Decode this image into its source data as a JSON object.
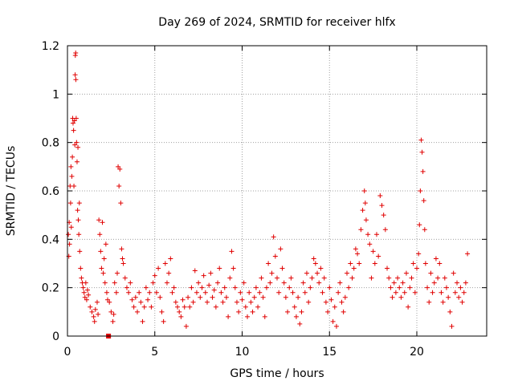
{
  "chart_data": {
    "type": "scatter",
    "title": "Day 269 of 2024, SRMTID for receiver hlfx",
    "xlabel": "GPS time / hours",
    "ylabel": "SRMTID / TECUs",
    "xlim": [
      0,
      24
    ],
    "ylim": [
      0,
      1.2
    ],
    "xticks": [
      0,
      5,
      10,
      15,
      20
    ],
    "xtick_labels": [
      "0",
      "5",
      "10",
      "15",
      "20"
    ],
    "yticks": [
      0,
      0.2,
      0.4,
      0.6,
      0.8,
      1.0,
      1.2
    ],
    "ytick_labels": [
      "0",
      "0.2",
      "0.4",
      "0.6",
      "0.8",
      "1",
      "1.2"
    ],
    "grid": true,
    "marker": "plus",
    "color": "#e00000",
    "series": [
      {
        "name": "SRMTID",
        "points": [
          [
            0.05,
            0.42
          ],
          [
            0.08,
            0.33
          ],
          [
            0.1,
            0.47
          ],
          [
            0.12,
            0.38
          ],
          [
            0.15,
            0.62
          ],
          [
            0.18,
            0.55
          ],
          [
            0.2,
            0.7
          ],
          [
            0.22,
            0.45
          ],
          [
            0.25,
            0.66
          ],
          [
            0.28,
            0.74
          ],
          [
            0.3,
            0.9
          ],
          [
            0.32,
            0.88
          ],
          [
            0.35,
            0.85
          ],
          [
            0.37,
            0.62
          ],
          [
            0.4,
            0.89
          ],
          [
            0.42,
            0.79
          ],
          [
            0.44,
            1.08
          ],
          [
            0.45,
            1.16
          ],
          [
            0.47,
            1.17
          ],
          [
            0.48,
            1.06
          ],
          [
            0.5,
            0.9
          ],
          [
            0.52,
            0.8
          ],
          [
            0.55,
            0.72
          ],
          [
            0.58,
            0.52
          ],
          [
            0.6,
            0.78
          ],
          [
            0.62,
            0.48
          ],
          [
            0.65,
            0.42
          ],
          [
            0.68,
            0.55
          ],
          [
            0.7,
            0.35
          ],
          [
            0.75,
            0.28
          ],
          [
            0.8,
            0.24
          ],
          [
            0.85,
            0.22
          ],
          [
            0.9,
            0.2
          ],
          [
            0.95,
            0.18
          ],
          [
            1.0,
            0.16
          ],
          [
            1.05,
            0.22
          ],
          [
            1.1,
            0.15
          ],
          [
            1.15,
            0.19
          ],
          [
            1.2,
            0.17
          ],
          [
            1.3,
            0.12
          ],
          [
            1.4,
            0.1
          ],
          [
            1.5,
            0.08
          ],
          [
            1.55,
            0.06
          ],
          [
            1.6,
            0.11
          ],
          [
            1.7,
            0.14
          ],
          [
            1.75,
            0.09
          ],
          [
            1.8,
            0.48
          ],
          [
            1.85,
            0.42
          ],
          [
            1.9,
            0.35
          ],
          [
            1.95,
            0.28
          ],
          [
            2.0,
            0.47
          ],
          [
            2.05,
            0.26
          ],
          [
            2.1,
            0.32
          ],
          [
            2.15,
            0.22
          ],
          [
            2.2,
            0.38
          ],
          [
            2.25,
            0.18
          ],
          [
            2.3,
            0.15
          ],
          [
            2.4,
            0.14
          ],
          [
            2.5,
            0.1
          ],
          [
            2.6,
            0.06
          ],
          [
            2.65,
            0.09
          ],
          [
            2.7,
            0.22
          ],
          [
            2.8,
            0.18
          ],
          [
            2.85,
            0.26
          ],
          [
            2.9,
            0.7
          ],
          [
            2.95,
            0.62
          ],
          [
            3.0,
            0.69
          ],
          [
            3.05,
            0.55
          ],
          [
            3.1,
            0.36
          ],
          [
            3.15,
            0.32
          ],
          [
            3.2,
            0.3
          ],
          [
            3.3,
            0.24
          ],
          [
            3.4,
            0.2
          ],
          [
            3.5,
            0.18
          ],
          [
            3.6,
            0.22
          ],
          [
            3.7,
            0.15
          ],
          [
            3.8,
            0.12
          ],
          [
            3.9,
            0.16
          ],
          [
            4.0,
            0.1
          ],
          [
            4.1,
            0.18
          ],
          [
            4.2,
            0.14
          ],
          [
            4.3,
            0.06
          ],
          [
            4.4,
            0.12
          ],
          [
            4.5,
            0.2
          ],
          [
            4.6,
            0.15
          ],
          [
            4.7,
            0.18
          ],
          [
            4.8,
            0.12
          ],
          [
            4.9,
            0.22
          ],
          [
            5.0,
            0.25
          ],
          [
            5.1,
            0.18
          ],
          [
            5.2,
            0.28
          ],
          [
            5.3,
            0.16
          ],
          [
            5.4,
            0.1
          ],
          [
            5.5,
            0.06
          ],
          [
            5.6,
            0.3
          ],
          [
            5.7,
            0.22
          ],
          [
            5.8,
            0.26
          ],
          [
            5.9,
            0.32
          ],
          [
            6.0,
            0.18
          ],
          [
            6.1,
            0.2
          ],
          [
            6.2,
            0.14
          ],
          [
            6.3,
            0.12
          ],
          [
            6.4,
            0.1
          ],
          [
            6.5,
            0.08
          ],
          [
            6.6,
            0.15
          ],
          [
            6.7,
            0.12
          ],
          [
            6.8,
            0.04
          ],
          [
            6.9,
            0.16
          ],
          [
            7.0,
            0.12
          ],
          [
            7.1,
            0.2
          ],
          [
            7.2,
            0.14
          ],
          [
            7.3,
            0.27
          ],
          [
            7.4,
            0.18
          ],
          [
            7.5,
            0.22
          ],
          [
            7.6,
            0.16
          ],
          [
            7.7,
            0.2
          ],
          [
            7.8,
            0.25
          ],
          [
            7.9,
            0.18
          ],
          [
            8.0,
            0.14
          ],
          [
            8.1,
            0.21
          ],
          [
            8.2,
            0.26
          ],
          [
            8.3,
            0.16
          ],
          [
            8.4,
            0.19
          ],
          [
            8.5,
            0.12
          ],
          [
            8.6,
            0.22
          ],
          [
            8.7,
            0.28
          ],
          [
            8.8,
            0.18
          ],
          [
            8.9,
            0.14
          ],
          [
            9.0,
            0.2
          ],
          [
            9.1,
            0.16
          ],
          [
            9.2,
            0.08
          ],
          [
            9.3,
            0.24
          ],
          [
            9.4,
            0.35
          ],
          [
            9.5,
            0.28
          ],
          [
            9.6,
            0.2
          ],
          [
            9.7,
            0.14
          ],
          [
            9.8,
            0.1
          ],
          [
            9.9,
            0.18
          ],
          [
            10.0,
            0.15
          ],
          [
            10.1,
            0.22
          ],
          [
            10.2,
            0.12
          ],
          [
            10.3,
            0.08
          ],
          [
            10.4,
            0.18
          ],
          [
            10.5,
            0.14
          ],
          [
            10.6,
            0.1
          ],
          [
            10.7,
            0.16
          ],
          [
            10.8,
            0.2
          ],
          [
            10.9,
            0.12
          ],
          [
            11.0,
            0.18
          ],
          [
            11.1,
            0.24
          ],
          [
            11.2,
            0.16
          ],
          [
            11.3,
            0.08
          ],
          [
            11.4,
            0.2
          ],
          [
            11.5,
            0.3
          ],
          [
            11.6,
            0.22
          ],
          [
            11.7,
            0.26
          ],
          [
            11.8,
            0.41
          ],
          [
            11.9,
            0.33
          ],
          [
            12.0,
            0.24
          ],
          [
            12.1,
            0.18
          ],
          [
            12.2,
            0.36
          ],
          [
            12.3,
            0.28
          ],
          [
            12.4,
            0.22
          ],
          [
            12.5,
            0.16
          ],
          [
            12.6,
            0.1
          ],
          [
            12.7,
            0.2
          ],
          [
            12.8,
            0.24
          ],
          [
            12.9,
            0.18
          ],
          [
            13.0,
            0.12
          ],
          [
            13.1,
            0.08
          ],
          [
            13.2,
            0.16
          ],
          [
            13.3,
            0.05
          ],
          [
            13.4,
            0.1
          ],
          [
            13.5,
            0.22
          ],
          [
            13.6,
            0.18
          ],
          [
            13.7,
            0.26
          ],
          [
            13.8,
            0.14
          ],
          [
            13.9,
            0.2
          ],
          [
            14.0,
            0.24
          ],
          [
            14.1,
            0.32
          ],
          [
            14.2,
            0.3
          ],
          [
            14.3,
            0.26
          ],
          [
            14.4,
            0.22
          ],
          [
            14.5,
            0.28
          ],
          [
            14.6,
            0.18
          ],
          [
            14.7,
            0.24
          ],
          [
            14.8,
            0.14
          ],
          [
            14.9,
            0.1
          ],
          [
            15.0,
            0.2
          ],
          [
            15.1,
            0.15
          ],
          [
            15.2,
            0.06
          ],
          [
            15.3,
            0.12
          ],
          [
            15.4,
            0.04
          ],
          [
            15.5,
            0.18
          ],
          [
            15.6,
            0.22
          ],
          [
            15.7,
            0.14
          ],
          [
            15.8,
            0.1
          ],
          [
            15.9,
            0.16
          ],
          [
            16.0,
            0.26
          ],
          [
            16.1,
            0.2
          ],
          [
            16.2,
            0.3
          ],
          [
            16.3,
            0.24
          ],
          [
            16.4,
            0.28
          ],
          [
            16.5,
            0.36
          ],
          [
            16.6,
            0.34
          ],
          [
            16.7,
            0.3
          ],
          [
            16.8,
            0.44
          ],
          [
            16.9,
            0.52
          ],
          [
            17.0,
            0.6
          ],
          [
            17.05,
            0.55
          ],
          [
            17.1,
            0.48
          ],
          [
            17.2,
            0.42
          ],
          [
            17.3,
            0.38
          ],
          [
            17.4,
            0.24
          ],
          [
            17.5,
            0.35
          ],
          [
            17.6,
            0.3
          ],
          [
            17.7,
            0.42
          ],
          [
            17.8,
            0.33
          ],
          [
            17.9,
            0.58
          ],
          [
            18.0,
            0.54
          ],
          [
            18.1,
            0.5
          ],
          [
            18.2,
            0.44
          ],
          [
            18.3,
            0.28
          ],
          [
            18.4,
            0.24
          ],
          [
            18.5,
            0.2
          ],
          [
            18.6,
            0.16
          ],
          [
            18.7,
            0.22
          ],
          [
            18.8,
            0.18
          ],
          [
            18.9,
            0.24
          ],
          [
            19.0,
            0.2
          ],
          [
            19.1,
            0.16
          ],
          [
            19.2,
            0.22
          ],
          [
            19.3,
            0.18
          ],
          [
            19.4,
            0.26
          ],
          [
            19.5,
            0.12
          ],
          [
            19.6,
            0.2
          ],
          [
            19.7,
            0.24
          ],
          [
            19.8,
            0.3
          ],
          [
            19.9,
            0.18
          ],
          [
            20.0,
            0.28
          ],
          [
            20.1,
            0.34
          ],
          [
            20.15,
            0.46
          ],
          [
            20.2,
            0.6
          ],
          [
            20.25,
            0.81
          ],
          [
            20.3,
            0.76
          ],
          [
            20.35,
            0.68
          ],
          [
            20.4,
            0.56
          ],
          [
            20.45,
            0.44
          ],
          [
            20.5,
            0.3
          ],
          [
            20.6,
            0.2
          ],
          [
            20.7,
            0.14
          ],
          [
            20.8,
            0.26
          ],
          [
            20.9,
            0.18
          ],
          [
            21.0,
            0.22
          ],
          [
            21.1,
            0.32
          ],
          [
            21.2,
            0.24
          ],
          [
            21.3,
            0.3
          ],
          [
            21.4,
            0.18
          ],
          [
            21.5,
            0.14
          ],
          [
            21.6,
            0.24
          ],
          [
            21.7,
            0.2
          ],
          [
            21.8,
            0.16
          ],
          [
            21.9,
            0.1
          ],
          [
            22.0,
            0.04
          ],
          [
            22.1,
            0.26
          ],
          [
            22.2,
            0.18
          ],
          [
            22.3,
            0.22
          ],
          [
            22.4,
            0.16
          ],
          [
            22.5,
            0.2
          ],
          [
            22.6,
            0.14
          ],
          [
            22.7,
            0.18
          ],
          [
            22.8,
            0.22
          ],
          [
            22.9,
            0.34
          ]
        ]
      }
    ],
    "square_markers": [
      [
        2.35,
        0.0
      ]
    ]
  }
}
